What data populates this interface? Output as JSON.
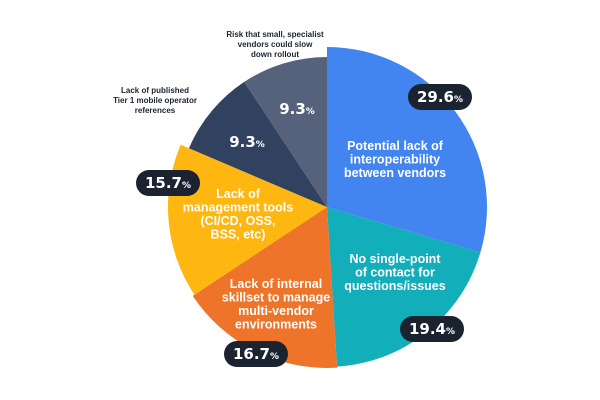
{
  "chart_data": {
    "type": "pie",
    "start": "top",
    "direction": "clockwise",
    "unit": "%",
    "slices": [
      {
        "label": "Potential lack of interoperability between vendors",
        "value": 29.6,
        "display": "29.6",
        "color": "#4285f0",
        "label_position": "inside",
        "value_style": "pill"
      },
      {
        "label": "No single-point of contact for questions/issues",
        "value": 19.4,
        "display": "19.4",
        "color": "#12aeb9",
        "label_position": "inside",
        "value_style": "pill"
      },
      {
        "label": "Lack of internal skillset to manage multi-vendor environments",
        "value": 16.7,
        "display": "16.7",
        "color": "#ee742a",
        "label_position": "inside",
        "value_style": "pill"
      },
      {
        "label": "Lack of management tools (CI/CD, OSS, BSS, etc)",
        "value": 15.7,
        "display": "15.7",
        "color": "#fdb710",
        "label_position": "inside",
        "value_style": "pill"
      },
      {
        "label": "Lack of published Tier 1 mobile operator references",
        "value": 9.3,
        "display": "9.3",
        "color": "#314260",
        "label_position": "outside",
        "value_style": "plain"
      },
      {
        "label": "Risk that small, specialist vendors could slow down rollout",
        "value": 9.3,
        "display": "9.3",
        "color": "#56617c",
        "label_position": "outside",
        "value_style": "plain"
      }
    ]
  }
}
